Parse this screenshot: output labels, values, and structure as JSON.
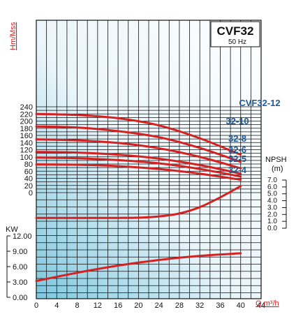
{
  "chart_data": {
    "type": "line",
    "model": "CVF32",
    "frequency": "50 Hz",
    "x": {
      "label": "Q m³/h",
      "range": [
        0,
        44
      ],
      "ticks": [
        0,
        4,
        8,
        12,
        16,
        20,
        24,
        28,
        32,
        36,
        40,
        44
      ]
    },
    "head": {
      "axis_label": "Hm/Mss",
      "range": [
        0,
        240
      ],
      "ticks": [
        0,
        20,
        40,
        60,
        80,
        100,
        120,
        140,
        160,
        180,
        200,
        220,
        240
      ],
      "series": [
        {
          "name": "CVF32-12",
          "x": [
            0,
            8,
            16,
            24,
            32,
            40
          ],
          "y": [
            220,
            217,
            208,
            188,
            152,
            106
          ]
        },
        {
          "name": "32-10",
          "x": [
            0,
            8,
            16,
            24,
            32,
            40
          ],
          "y": [
            185,
            182,
            172,
            155,
            125,
            86
          ]
        },
        {
          "name": "32-8",
          "x": [
            0,
            8,
            16,
            24,
            32,
            40
          ],
          "y": [
            149,
            146,
            139,
            124,
            100,
            68
          ]
        },
        {
          "name": "32-6",
          "x": [
            0,
            8,
            16,
            24,
            32,
            40
          ],
          "y": [
            114,
            112,
            106,
            95,
            77,
            53
          ]
        },
        {
          "name": "32-5",
          "x": [
            0,
            8,
            16,
            24,
            32,
            40
          ],
          "y": [
            98,
            96,
            91,
            82,
            66,
            45
          ]
        },
        {
          "name": "32-4",
          "x": [
            0,
            8,
            16,
            24,
            32,
            40
          ],
          "y": [
            79,
            78,
            74,
            66,
            53,
            36
          ]
        }
      ]
    },
    "npsh": {
      "axis_label": "NPSH",
      "unit": "(m)",
      "tick_labels": [
        "7.0",
        "6.0",
        "5.0",
        "4.0",
        "3.0",
        "2.0",
        "1.0",
        "0.0"
      ],
      "range": [
        0,
        7
      ],
      "x": [
        0,
        8,
        16,
        20,
        24,
        28,
        32,
        36,
        40
      ],
      "y": [
        0.4,
        0.4,
        0.4,
        0.45,
        0.7,
        1.3,
        2.6,
        4.6,
        6.9
      ]
    },
    "power": {
      "axis_label": "KW",
      "tick_labels": [
        "12.00",
        "9.00",
        "6.00",
        "3.00",
        "0.00"
      ],
      "range": [
        0,
        12
      ],
      "x": [
        0,
        8,
        16,
        24,
        32,
        40
      ],
      "y": [
        3.2,
        4.8,
        6.2,
        7.3,
        8.1,
        8.6
      ]
    },
    "grid": true,
    "colors": {
      "curve": "#d42121",
      "label_blue": "#1f5a96",
      "axis_red": "#d42121",
      "grid": "#111111",
      "fill_dark": "#7cc7df"
    }
  }
}
